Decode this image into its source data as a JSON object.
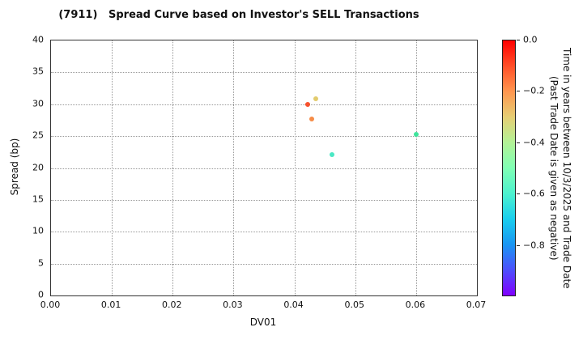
{
  "chart_data": {
    "type": "scatter",
    "title": "(7911)   Spread Curve based on Investor's SELL Transactions",
    "xlabel": "DV01",
    "ylabel": "Spread (bp)",
    "xlim": [
      0.0,
      0.07
    ],
    "ylim": [
      0,
      40
    ],
    "grid": "dotted",
    "legend_position": "none",
    "xticks": [
      {
        "value": 0.0,
        "label": "0.00"
      },
      {
        "value": 0.01,
        "label": "0.01"
      },
      {
        "value": 0.02,
        "label": "0.02"
      },
      {
        "value": 0.03,
        "label": "0.03"
      },
      {
        "value": 0.04,
        "label": "0.04"
      },
      {
        "value": 0.05,
        "label": "0.05"
      },
      {
        "value": 0.06,
        "label": "0.06"
      },
      {
        "value": 0.07,
        "label": "0.07"
      }
    ],
    "yticks": [
      {
        "value": 0,
        "label": "0"
      },
      {
        "value": 5,
        "label": "5"
      },
      {
        "value": 10,
        "label": "10"
      },
      {
        "value": 15,
        "label": "15"
      },
      {
        "value": 20,
        "label": "20"
      },
      {
        "value": 25,
        "label": "25"
      },
      {
        "value": 30,
        "label": "30"
      },
      {
        "value": 35,
        "label": "35"
      },
      {
        "value": 40,
        "label": "40"
      }
    ],
    "points": [
      {
        "dv01": 0.0422,
        "spread": 30.0,
        "time_years": -0.1,
        "color": "#f7512d"
      },
      {
        "dv01": 0.0435,
        "spread": 30.8,
        "time_years": -0.3,
        "color": "#e2cb6d"
      },
      {
        "dv01": 0.0428,
        "spread": 27.7,
        "time_years": -0.2,
        "color": "#f68c48"
      },
      {
        "dv01": 0.0462,
        "spread": 22.1,
        "time_years": -0.55,
        "color": "#4ae8c4"
      },
      {
        "dv01": 0.06,
        "spread": 25.3,
        "time_years": -0.5,
        "color": "#3fe49c"
      }
    ],
    "colorbar": {
      "label_line1": "Time in years between 10/3/2025 and Trade Date",
      "label_line2": "(Past Trade Date is given as negative)",
      "colormap": "rainbow",
      "range_top_to_bottom": [
        0.0,
        -1.0
      ],
      "ticks": [
        {
          "value": 0.0,
          "label": "0.0"
        },
        {
          "value": -0.2,
          "label": "−0.2"
        },
        {
          "value": -0.4,
          "label": "−0.4"
        },
        {
          "value": -0.6,
          "label": "−0.6"
        },
        {
          "value": -0.8,
          "label": "−0.8"
        }
      ],
      "gradient_top_to_bottom": [
        "#ff0000",
        "#ff4f28",
        "#ff964f",
        "#e6ce74",
        "#b3f296",
        "#80ffb4",
        "#4df2ce",
        "#1aceee",
        "#1a96f2",
        "#4d4ffc",
        "#8000ff"
      ]
    }
  }
}
